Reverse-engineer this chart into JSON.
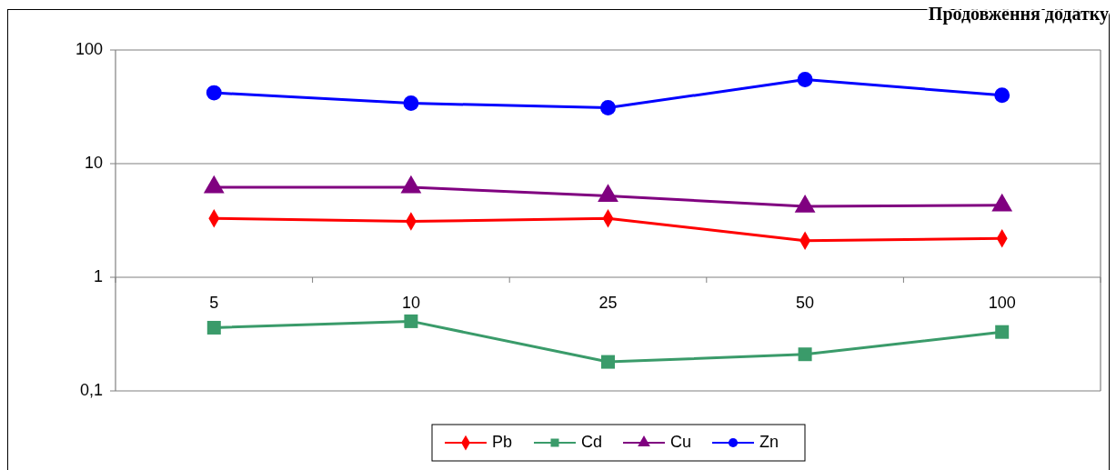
{
  "chart_data": {
    "type": "line",
    "annotations": [
      "Продовження додатку"
    ],
    "categories": [
      "5",
      "10",
      "25",
      "50",
      "100"
    ],
    "series": [
      {
        "name": "Pb",
        "color": "#ff0000",
        "marker": "diamond",
        "values": [
          3.3,
          3.1,
          3.3,
          2.1,
          2.2
        ]
      },
      {
        "name": "Cd",
        "color": "#3a9b6a",
        "marker": "square",
        "values": [
          0.36,
          0.41,
          0.18,
          0.21,
          0.33
        ]
      },
      {
        "name": "Cu",
        "color": "#800080",
        "marker": "triangle",
        "values": [
          6.2,
          6.2,
          5.2,
          4.2,
          4.3
        ]
      },
      {
        "name": "Zn",
        "color": "#0000ff",
        "marker": "circle",
        "values": [
          42,
          34,
          31,
          55,
          40
        ]
      }
    ],
    "log": true,
    "ylim": [
      0.1,
      100
    ],
    "yticks": [
      {
        "value": 0.1,
        "label": "0,1"
      },
      1,
      10,
      100
    ],
    "grid": "y",
    "legend": "bottom"
  }
}
